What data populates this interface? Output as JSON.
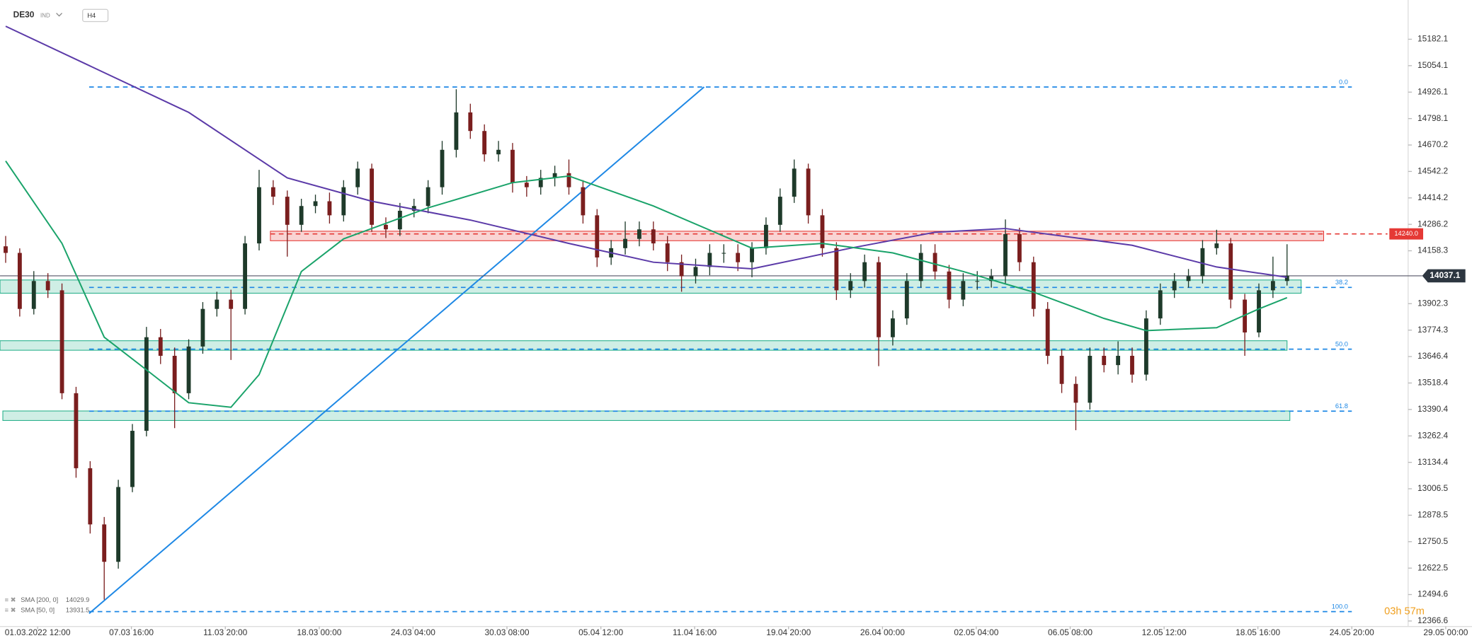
{
  "chart_data": {
    "type": "candlestick",
    "symbol": "DE30",
    "market": "IND",
    "timeframe": "H4",
    "open": [
      14180,
      14148,
      13877,
      14012,
      13967,
      13469,
      13106,
      12834,
      12653,
      13015,
      13287,
      13740,
      13650,
      13469,
      13695,
      13877,
      13922,
      13877,
      14194,
      14466,
      14420,
      14284,
      14375,
      14398,
      14330,
      14466,
      14556,
      14284,
      14262,
      14352,
      14375,
      14466,
      14647,
      14828,
      14738,
      14625,
      14647,
      14488,
      14466,
      14511,
      14534,
      14466,
      14330,
      14126,
      14171,
      14216,
      14262,
      14194,
      14103,
      14035,
      14080,
      14148,
      14148,
      14103,
      14171,
      14284,
      14420,
      14556,
      14330,
      14171,
      13967,
      14012,
      14103,
      13740,
      13831,
      14012,
      14148,
      14058,
      13922,
      14012,
      14012,
      14035,
      14239,
      14103,
      13877,
      13650,
      13514,
      13423,
      13650,
      13605,
      13650,
      13559,
      13831,
      13967,
      14012,
      14035,
      14171,
      14194,
      13922,
      13763,
      13967,
      14012
    ],
    "high": [
      14230,
      14170,
      14060,
      14050,
      14000,
      13500,
      13140,
      12870,
      13050,
      13320,
      13790,
      13780,
      13690,
      13730,
      13910,
      13960,
      13970,
      14230,
      14550,
      14500,
      14450,
      14410,
      14430,
      14440,
      14500,
      14590,
      14580,
      14320,
      14390,
      14410,
      14500,
      14690,
      14940,
      14870,
      14770,
      14690,
      14680,
      14520,
      14550,
      14570,
      14600,
      14500,
      14360,
      14210,
      14300,
      14300,
      14300,
      14230,
      14140,
      14120,
      14190,
      14190,
      14190,
      14200,
      14320,
      14460,
      14600,
      14580,
      14360,
      14200,
      14050,
      14140,
      14130,
      13870,
      14050,
      14190,
      14190,
      14090,
      14050,
      14060,
      14070,
      14310,
      14270,
      14130,
      13910,
      13680,
      13550,
      13690,
      13690,
      13720,
      13690,
      13870,
      14000,
      14050,
      14070,
      14210,
      14260,
      14220,
      13950,
      14000,
      14130,
      14190
    ],
    "low": [
      14100,
      13840,
      13850,
      13930,
      13440,
      13060,
      12790,
      12470,
      12620,
      12990,
      13260,
      13610,
      13300,
      13440,
      13660,
      13840,
      13630,
      13850,
      14160,
      14380,
      14130,
      14250,
      14340,
      14290,
      14300,
      14430,
      14250,
      14220,
      14230,
      14320,
      14340,
      14430,
      14610,
      14700,
      14590,
      14590,
      14440,
      14420,
      14430,
      14470,
      14430,
      14290,
      14080,
      14090,
      14140,
      14180,
      14160,
      14060,
      13960,
      14000,
      14040,
      14100,
      14060,
      14030,
      14140,
      14250,
      14390,
      14290,
      14130,
      13920,
      13930,
      13980,
      13600,
      13700,
      13800,
      13980,
      14020,
      13880,
      13890,
      13970,
      13980,
      14000,
      14060,
      13840,
      13610,
      13470,
      13290,
      13390,
      13570,
      13560,
      13520,
      13530,
      13800,
      13930,
      13980,
      14000,
      14140,
      13880,
      13650,
      13740,
      13930,
      13990
    ],
    "close": [
      14148,
      13877,
      14012,
      13967,
      13469,
      13106,
      12834,
      12653,
      13015,
      13287,
      13740,
      13650,
      13469,
      13695,
      13877,
      13922,
      13877,
      14194,
      14466,
      14420,
      14284,
      14375,
      14398,
      14330,
      14466,
      14556,
      14284,
      14262,
      14352,
      14375,
      14466,
      14647,
      14828,
      14738,
      14625,
      14647,
      14488,
      14466,
      14511,
      14534,
      14466,
      14330,
      14126,
      14171,
      14216,
      14262,
      14194,
      14103,
      14035,
      14080,
      14148,
      14148,
      14103,
      14171,
      14284,
      14420,
      14556,
      14330,
      14171,
      13967,
      14012,
      14103,
      13740,
      13831,
      14012,
      14148,
      14058,
      13922,
      14012,
      14012,
      14035,
      14239,
      14103,
      13877,
      13650,
      13514,
      13423,
      13650,
      13605,
      13650,
      13559,
      13831,
      13967,
      14012,
      14035,
      14171,
      14194,
      13922,
      13763,
      13967,
      14012,
      14037.1
    ],
    "up_color": "#1e3a2a",
    "down_color": "#7a1e1e",
    "xlim": [
      -0.4,
      99.6
    ],
    "ylim": [
      12340,
      15372
    ],
    "yticks": [
      15182.1,
      15054.1,
      14926.1,
      14798.1,
      14670.2,
      14542.2,
      14414.2,
      14286.2,
      14158.3,
      13902.3,
      13774.3,
      13646.4,
      13518.4,
      13390.4,
      13262.4,
      13134.4,
      13006.5,
      12878.5,
      12750.5,
      12622.5,
      12494.6,
      12366.6
    ],
    "xticks": [
      {
        "value": 2.27,
        "label": "01.03.2022 12:00"
      },
      {
        "value": 8.93,
        "label": "07.03 16:00"
      },
      {
        "value": 15.6,
        "label": "11.03 20:00"
      },
      {
        "value": 22.27,
        "label": "18.03 00:00"
      },
      {
        "value": 28.93,
        "label": "24.03 04:00"
      },
      {
        "value": 35.6,
        "label": "30.03 08:00"
      },
      {
        "value": 42.27,
        "label": "05.04 12:00"
      },
      {
        "value": 48.93,
        "label": "11.04 16:00"
      },
      {
        "value": 55.6,
        "label": "19.04 20:00"
      },
      {
        "value": 62.27,
        "label": "26.04 00:00"
      },
      {
        "value": 68.93,
        "label": "02.05 04:00"
      },
      {
        "value": 75.6,
        "label": "06.05 08:00"
      },
      {
        "value": 82.27,
        "label": "12.05 12:00"
      },
      {
        "value": 88.93,
        "label": "18.05 16:00"
      },
      {
        "value": 95.6,
        "label": "24.05 20:00"
      },
      {
        "value": 102.27,
        "label": "29.05 00:00"
      }
    ],
    "series": [
      {
        "name": "SMA [200, 0]",
        "color": "#5b3aa8",
        "x": [
          0,
          13,
          20,
          26,
          33,
          40,
          46,
          53,
          60,
          66,
          71,
          80,
          86,
          91
        ],
        "values": [
          15245,
          14828,
          14511,
          14398,
          14307,
          14194,
          14103,
          14071,
          14171,
          14248,
          14266,
          14185,
          14080,
          14029.9
        ]
      },
      {
        "name": "SMA [50, 0]",
        "color": "#1aa36a",
        "x": [
          0,
          4,
          7,
          10,
          13,
          16,
          18,
          21,
          24,
          30,
          36,
          40,
          46,
          53,
          58,
          63,
          68,
          73,
          78,
          81,
          86,
          89,
          91
        ],
        "values": [
          14593,
          14194,
          13740,
          13582,
          13423,
          13401,
          13559,
          14058,
          14216,
          14366,
          14488,
          14520,
          14375,
          14171,
          14194,
          14148,
          14058,
          13958,
          13831,
          13772,
          13786,
          13877,
          13931.5
        ]
      }
    ],
    "zones": [
      {
        "range": [
          14207,
          14253
        ],
        "x": [
          18.8,
          93.6
        ],
        "color": "#e53935"
      },
      {
        "range": [
          13953,
          14017
        ],
        "x": [
          -0.4,
          92.0
        ],
        "color": "#26b08a"
      },
      {
        "range": [
          13677,
          13723
        ],
        "x": [
          -0.4,
          91.0
        ],
        "color": "#26b08a"
      },
      {
        "range": [
          13337,
          13383
        ],
        "x": [
          -0.2,
          91.2
        ],
        "color": "#26b08a"
      }
    ],
    "fib_x": [
      5.93,
      95.6
    ],
    "fib_color": "#1e88e5",
    "fib_levels": [
      {
        "value": 14951,
        "label": "0.0"
      },
      {
        "value": 13981,
        "label": "38.2"
      },
      {
        "value": 13682,
        "label": "50.0"
      },
      {
        "value": 13382,
        "label": "61.8"
      },
      {
        "value": 12412,
        "label": "100.0"
      }
    ],
    "resistance": {
      "value": 14240.0,
      "label": "14240.0",
      "x": 18.8,
      "color": "#e53935"
    },
    "trend_line": {
      "x": [
        5.93,
        49.6
      ],
      "values": [
        12403,
        14951
      ],
      "color": "#1e88e5"
    },
    "last_price": 14037.1,
    "countdown": "03h 57m"
  }
}
